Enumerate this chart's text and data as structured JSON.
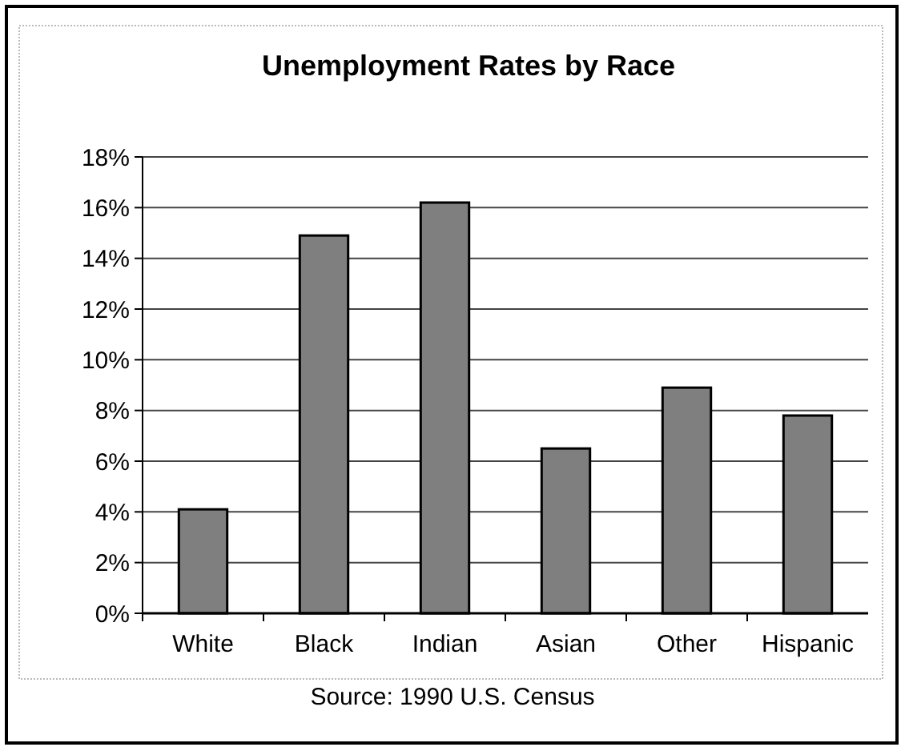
{
  "chart_data": {
    "type": "bar",
    "title": "Unemployment Rates by Race",
    "categories": [
      "White",
      "Black",
      "Indian",
      "Asian",
      "Other",
      "Hispanic"
    ],
    "values": [
      4.1,
      14.9,
      16.2,
      6.5,
      8.9,
      7.8
    ],
    "color": "#7f7f7f",
    "ylim": [
      0,
      18
    ],
    "yticks": [
      {
        "value": 0,
        "label": "0%"
      },
      {
        "value": 2,
        "label": "2%"
      },
      {
        "value": 4,
        "label": "4%"
      },
      {
        "value": 6,
        "label": "6%"
      },
      {
        "value": 8,
        "label": "8%"
      },
      {
        "value": 10,
        "label": "10%"
      },
      {
        "value": 12,
        "label": "12%"
      },
      {
        "value": 14,
        "label": "14%"
      },
      {
        "value": 16,
        "label": "16%"
      },
      {
        "value": 18,
        "label": "18%"
      }
    ],
    "grid": "y",
    "annotations": [
      "Source: 1990 U.S. Census"
    ]
  }
}
